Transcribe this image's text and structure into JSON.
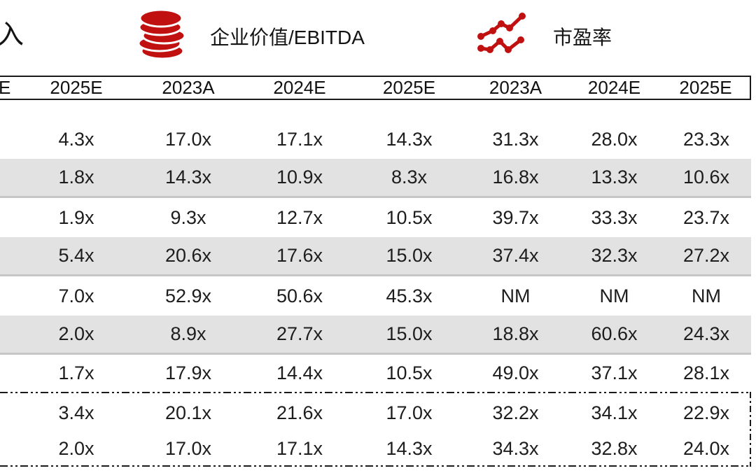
{
  "legend": {
    "partial_text": "入",
    "ev_ebitda_label": "企业价值/EBITDA",
    "pe_label": "市盈率",
    "icon_color": "#C01010"
  },
  "table": {
    "header": [
      "E",
      "2025E",
      "2023A",
      "2024E",
      "2025E",
      "2023A",
      "2024E",
      "2025E"
    ],
    "rows": [
      {
        "shaded": false,
        "cells": [
          "4.3x",
          "17.0x",
          "17.1x",
          "14.3x",
          "31.3x",
          "28.0x",
          "23.3x"
        ]
      },
      {
        "shaded": true,
        "cells": [
          "1.8x",
          "14.3x",
          "10.9x",
          "8.3x",
          "16.8x",
          "13.3x",
          "10.6x"
        ]
      },
      {
        "shaded": false,
        "cells": [
          "1.9x",
          "9.3x",
          "12.7x",
          "10.5x",
          "39.7x",
          "33.3x",
          "23.7x"
        ]
      },
      {
        "shaded": true,
        "cells": [
          "5.4x",
          "20.6x",
          "17.6x",
          "15.0x",
          "37.4x",
          "32.3x",
          "27.2x"
        ]
      },
      {
        "shaded": false,
        "cells": [
          "7.0x",
          "52.9x",
          "50.6x",
          "45.3x",
          "NM",
          "NM",
          "NM"
        ]
      },
      {
        "shaded": true,
        "cells": [
          "2.0x",
          "8.9x",
          "27.7x",
          "15.0x",
          "18.8x",
          "60.6x",
          "24.3x"
        ]
      },
      {
        "shaded": false,
        "cells": [
          "1.7x",
          "17.9x",
          "14.4x",
          "10.5x",
          "49.0x",
          "37.1x",
          "28.1x"
        ]
      }
    ],
    "summary_rows": [
      {
        "cells": [
          "3.4x",
          "20.1x",
          "21.6x",
          "17.0x",
          "32.2x",
          "34.1x",
          "22.9x"
        ]
      },
      {
        "cells": [
          "2.0x",
          "17.0x",
          "17.1x",
          "14.3x",
          "34.3x",
          "32.8x",
          "24.0x"
        ]
      }
    ],
    "colors": {
      "shaded_row": "#E2E2E2",
      "header_line": "#1A1A1A",
      "text": "#1D1D1D"
    }
  }
}
